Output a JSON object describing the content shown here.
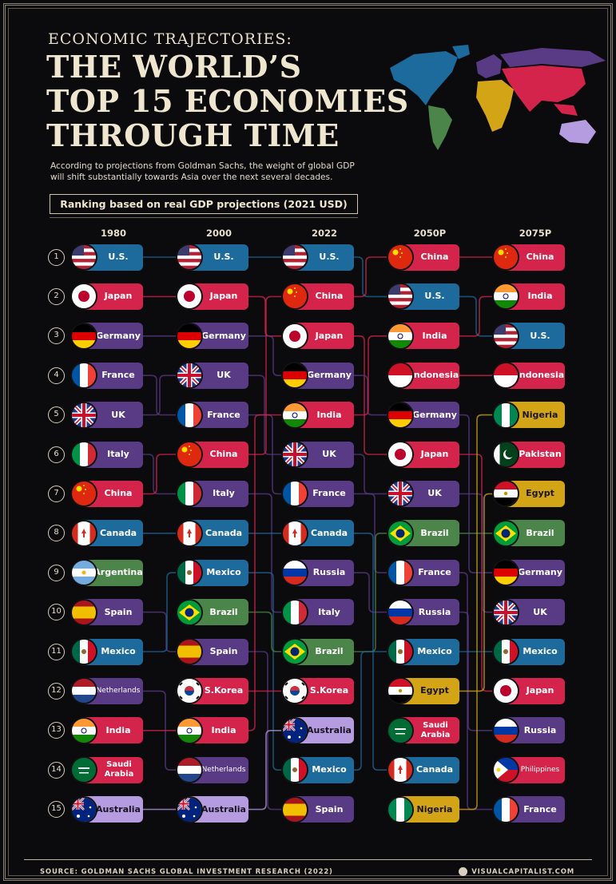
{
  "header": {
    "kicker": "ECONOMIC TRAJECTORIES:",
    "title_lines": [
      "THE WORLD’S",
      "TOP 15 ECONOMIES",
      "THROUGH TIME"
    ],
    "subtitle_lines": [
      "According to projections from Goldman Sachs, the weight of global GDP",
      "will shift substantially towards Asia over the next several decades."
    ],
    "ranking_note": "Ranking based on real GDP projections (2021 USD)"
  },
  "footer": {
    "source": "SOURCE: GOLDMAN SACHS GLOBAL INVESTMENT RESEARCH (2022)",
    "brand": "VISUALCAPITALIST.COM"
  },
  "region_colors": {
    "north-america": "#1d6a9c",
    "asia": "#d4244c",
    "europe": "#593a85",
    "latin-america": "#4c8549",
    "africa": "#d3a516",
    "oceania": "#b59be0"
  },
  "chart_data": {
    "type": "table",
    "title": "THE WORLD’S TOP 15 ECONOMIES THROUGH TIME",
    "ranks": [
      "1",
      "2",
      "3",
      "4",
      "5",
      "6",
      "7",
      "8",
      "9",
      "10",
      "11",
      "12",
      "13",
      "14",
      "15"
    ],
    "columns": [
      {
        "year": "1980",
        "countries": [
          "U.S.",
          "Japan",
          "Germany",
          "France",
          "UK",
          "Italy",
          "China",
          "Canada",
          "Argentina",
          "Spain",
          "Mexico",
          "Netherlands",
          "India",
          "Saudi Arabia",
          "Australia"
        ]
      },
      {
        "year": "2000",
        "countries": [
          "U.S.",
          "Japan",
          "Germany",
          "UK",
          "France",
          "China",
          "Italy",
          "Canada",
          "Mexico",
          "Brazil",
          "Spain",
          "S.Korea",
          "India",
          "Netherlands",
          "Australia"
        ]
      },
      {
        "year": "2022",
        "countries": [
          "U.S.",
          "China",
          "Japan",
          "Germany",
          "India",
          "UK",
          "France",
          "Canada",
          "Russia",
          "Italy",
          "Brazil",
          "S.Korea",
          "Australia",
          "Mexico",
          "Spain"
        ]
      },
      {
        "year": "2050P",
        "countries": [
          "China",
          "U.S.",
          "India",
          "Indonesia",
          "Germany",
          "Japan",
          "UK",
          "Brazil",
          "France",
          "Russia",
          "Mexico",
          "Egypt",
          "Saudi Arabia",
          "Canada",
          "Nigeria"
        ]
      },
      {
        "year": "2075P",
        "countries": [
          "China",
          "India",
          "U.S.",
          "Indonesia",
          "Nigeria",
          "Pakistan",
          "Egypt",
          "Brazil",
          "Germany",
          "UK",
          "Mexico",
          "Japan",
          "Russia",
          "Philippines",
          "France"
        ]
      }
    ],
    "country_regions": {
      "U.S.": "north-america",
      "Canada": "north-america",
      "Mexico": "north-america",
      "Japan": "asia",
      "China": "asia",
      "India": "asia",
      "Indonesia": "asia",
      "S.Korea": "asia",
      "Saudi Arabia": "asia",
      "Pakistan": "asia",
      "Philippines": "asia",
      "Germany": "europe",
      "France": "europe",
      "UK": "europe",
      "Italy": "europe",
      "Spain": "europe",
      "Netherlands": "europe",
      "Russia": "europe",
      "Argentina": "latin-america",
      "Brazil": "latin-america",
      "Egypt": "africa",
      "Nigeria": "africa",
      "Australia": "oceania"
    }
  }
}
